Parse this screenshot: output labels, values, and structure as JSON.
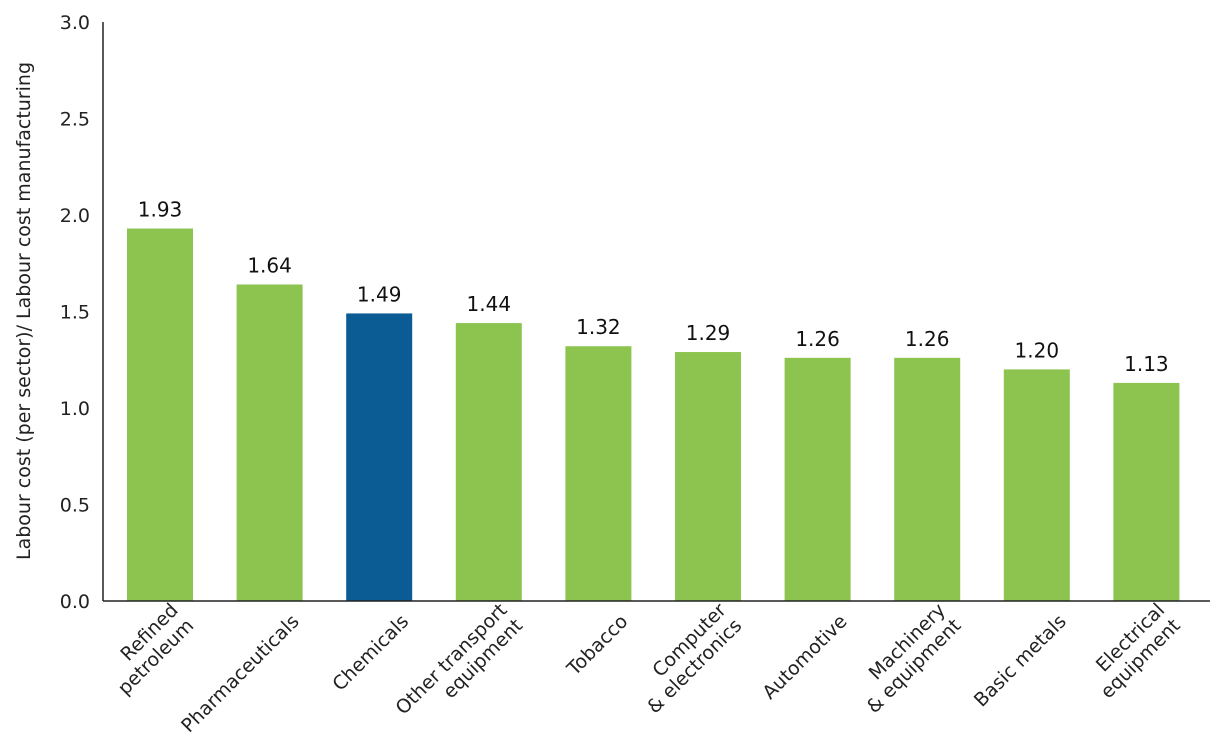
{
  "chart_data": {
    "type": "bar",
    "title": "",
    "xlabel": "",
    "ylabel": "Labour cost (per sector)/ Labour cost manufacturing",
    "ylim": [
      0,
      3.0
    ],
    "yticks": [
      "0.0",
      "0.5",
      "1.0",
      "1.5",
      "2.0",
      "2.5",
      "3.0"
    ],
    "grid": false,
    "categories": [
      [
        "Refined",
        "petroleum"
      ],
      [
        "Pharmaceuticals"
      ],
      [
        "Chemicals"
      ],
      [
        "Other transport",
        "equipment"
      ],
      [
        "Tobacco"
      ],
      [
        "Computer",
        "& electronics"
      ],
      [
        "Automotive"
      ],
      [
        "Machinery",
        "& equipment"
      ],
      [
        "Basic metals"
      ],
      [
        "Electrical",
        "equipment"
      ]
    ],
    "values": [
      1.93,
      1.64,
      1.49,
      1.44,
      1.32,
      1.29,
      1.26,
      1.26,
      1.2,
      1.13
    ],
    "data_labels": [
      "1.93",
      "1.64",
      "1.49",
      "1.44",
      "1.32",
      "1.29",
      "1.26",
      "1.26",
      "1.20",
      "1.13"
    ],
    "highlight_index": 2,
    "colors": {
      "default": "#8cc44f",
      "highlight": "#0b5b95",
      "axis": "#222222"
    }
  }
}
